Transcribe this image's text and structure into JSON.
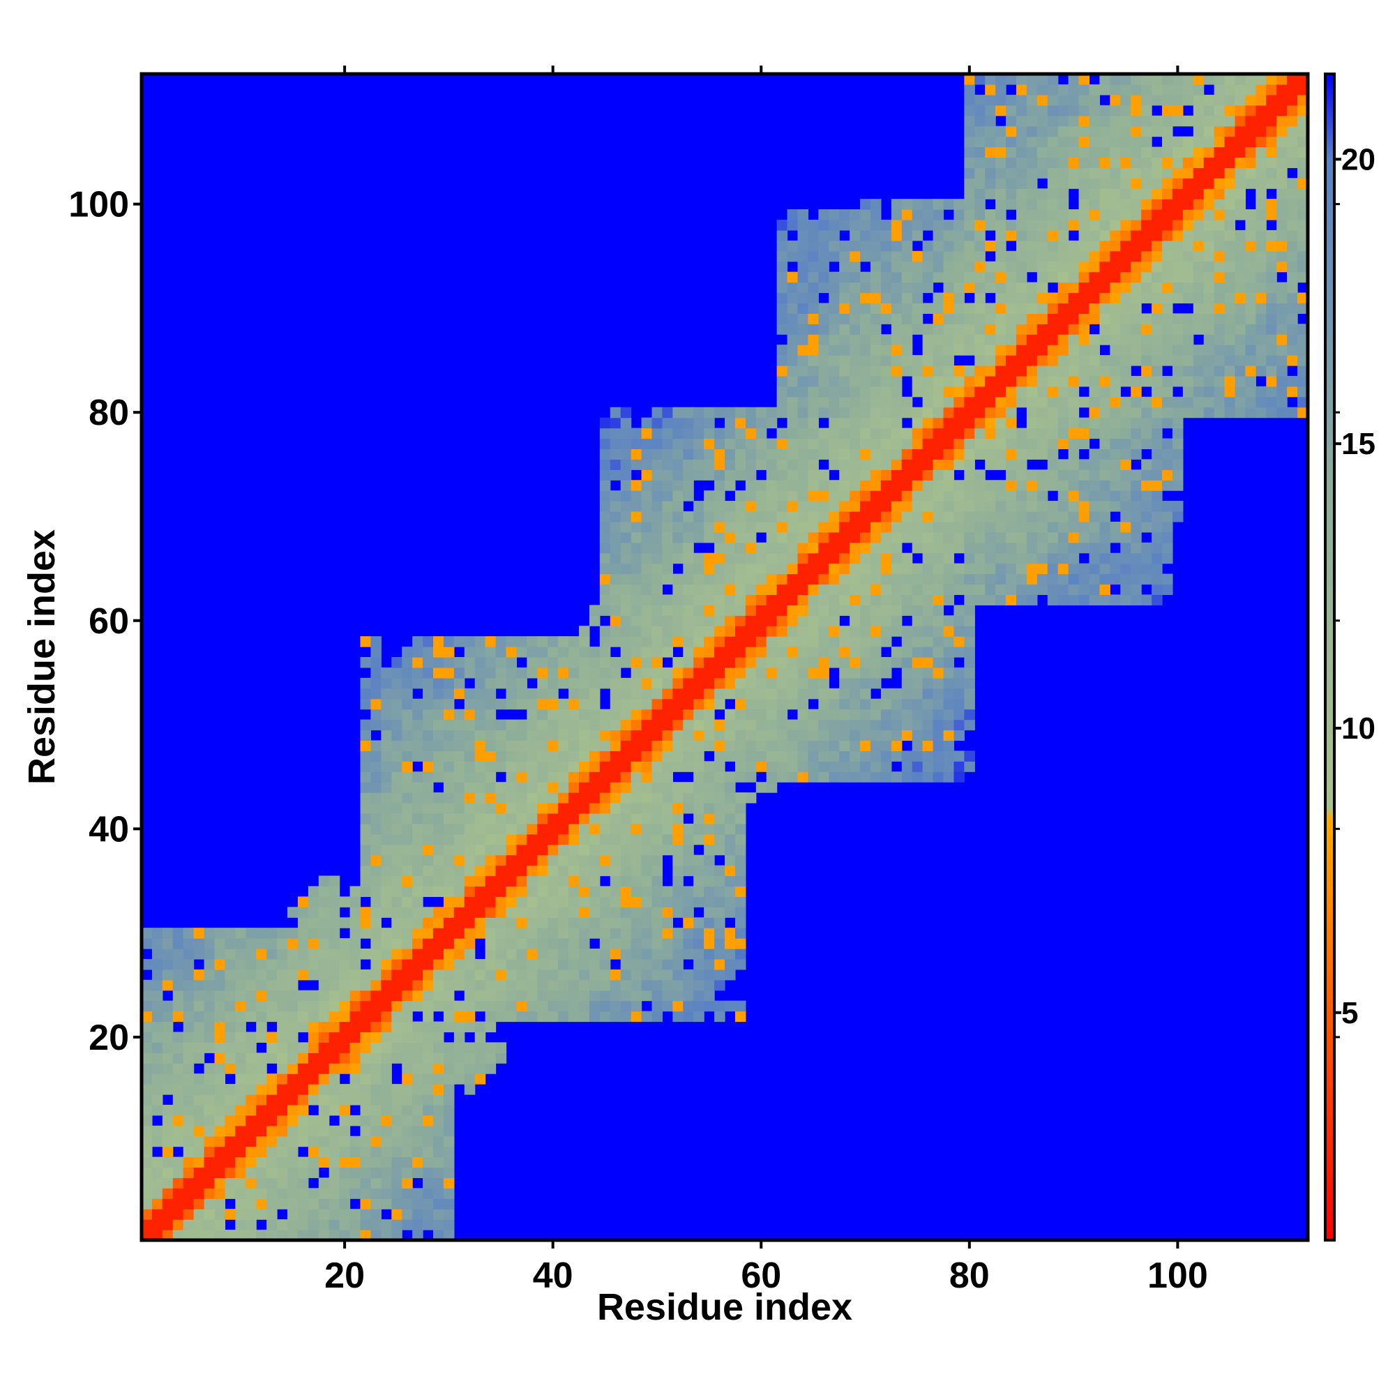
{
  "chart_data": {
    "type": "heatmap",
    "title": "",
    "xlabel": "Residue index",
    "ylabel": "Residue index",
    "xlim": [
      1,
      112
    ],
    "ylim": [
      1,
      112
    ],
    "x_ticks": [
      20,
      40,
      60,
      80,
      100
    ],
    "y_ticks": [
      20,
      40,
      60,
      80,
      100
    ],
    "x_tick_labels": [
      "20",
      "40",
      "60",
      "80",
      "100"
    ],
    "y_tick_labels": [
      "20",
      "40",
      "60",
      "80",
      "100"
    ],
    "n_residues": 112,
    "value": "pairwise distance between residues",
    "color_scale": {
      "range": [
        1,
        21.5
      ],
      "ticks": [
        5,
        10,
        15,
        20
      ],
      "tick_labels": [
        "5",
        "10",
        "15",
        "20"
      ],
      "stops": [
        {
          "value": 1,
          "color": "#ff0000"
        },
        {
          "value": 5.5,
          "color": "#ff6600"
        },
        {
          "value": 8.4,
          "color": "#ffaa00"
        },
        {
          "value": 8.6,
          "color": "#a9c18e"
        },
        {
          "value": 14,
          "color": "#8fae9a"
        },
        {
          "value": 20,
          "color": "#5a82c4"
        },
        {
          "value": 21.5,
          "color": "#0000ff"
        }
      ],
      "above_range_color": "#0000ff"
    },
    "grid": false,
    "symmetric": true
  }
}
